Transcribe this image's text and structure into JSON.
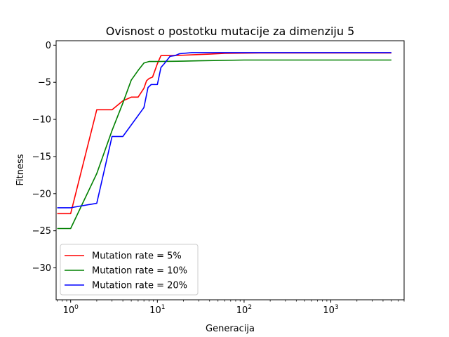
{
  "chart_data": {
    "type": "line",
    "title": "Ovisnost o postotku mutacije za dimenziju 5",
    "xlabel": "Generacija",
    "ylabel": "Fitness",
    "xscale": "log",
    "xlim": [
      0.68,
      7000
    ],
    "ylim": [
      -34.3,
      0.6
    ],
    "x_ticks": [
      {
        "value": 1,
        "base": "10",
        "exp": "0"
      },
      {
        "value": 10,
        "base": "10",
        "exp": "1"
      },
      {
        "value": 100,
        "base": "10",
        "exp": "2"
      },
      {
        "value": 1000,
        "base": "10",
        "exp": "3"
      }
    ],
    "y_ticks": [
      {
        "value": 0,
        "label": "0"
      },
      {
        "value": -5,
        "label": "−5"
      },
      {
        "value": -10,
        "label": "−10"
      },
      {
        "value": -15,
        "label": "−15"
      },
      {
        "value": -20,
        "label": "−20"
      },
      {
        "value": -25,
        "label": "−25"
      },
      {
        "value": -30,
        "label": "−30"
      }
    ],
    "grid": false,
    "legend_position": "lower-left",
    "series": [
      {
        "name": "Mutation rate = 5%",
        "color": "#ff0000",
        "points": [
          [
            0.7,
            -22.7
          ],
          [
            1,
            -22.7
          ],
          [
            2,
            -8.7
          ],
          [
            3,
            -8.7
          ],
          [
            4,
            -7.5
          ],
          [
            5,
            -7.0
          ],
          [
            6,
            -7.0
          ],
          [
            7,
            -5.8
          ],
          [
            7.5,
            -4.8
          ],
          [
            8,
            -4.5
          ],
          [
            8.8,
            -4.3
          ],
          [
            10,
            -2.5
          ],
          [
            11,
            -1.4
          ],
          [
            14,
            -1.4
          ],
          [
            20,
            -1.35
          ],
          [
            25,
            -1.3
          ],
          [
            40,
            -1.2
          ],
          [
            60,
            -1.1
          ],
          [
            150,
            -1.05
          ],
          [
            5000,
            -1.05
          ]
        ]
      },
      {
        "name": "Mutation rate = 10%",
        "color": "#008000",
        "points": [
          [
            0.7,
            -24.7
          ],
          [
            1,
            -24.7
          ],
          [
            2,
            -17.3
          ],
          [
            3,
            -11.5
          ],
          [
            4,
            -7.8
          ],
          [
            5,
            -4.7
          ],
          [
            6,
            -3.4
          ],
          [
            7,
            -2.4
          ],
          [
            8,
            -2.2
          ],
          [
            10,
            -2.2
          ],
          [
            20,
            -2.15
          ],
          [
            30,
            -2.1
          ],
          [
            100,
            -2.0
          ],
          [
            5000,
            -2.0
          ]
        ]
      },
      {
        "name": "Mutation rate = 20%",
        "color": "#0000ff",
        "points": [
          [
            0.7,
            -21.9
          ],
          [
            1,
            -21.9
          ],
          [
            2,
            -21.3
          ],
          [
            3,
            -12.3
          ],
          [
            4,
            -12.3
          ],
          [
            7,
            -8.4
          ],
          [
            7.8,
            -5.7
          ],
          [
            8.5,
            -5.3
          ],
          [
            10,
            -5.3
          ],
          [
            11,
            -3.0
          ],
          [
            12,
            -2.5
          ],
          [
            14,
            -1.5
          ],
          [
            16,
            -1.4
          ],
          [
            18,
            -1.15
          ],
          [
            25,
            -1.0
          ],
          [
            5000,
            -1.0
          ]
        ]
      }
    ]
  }
}
